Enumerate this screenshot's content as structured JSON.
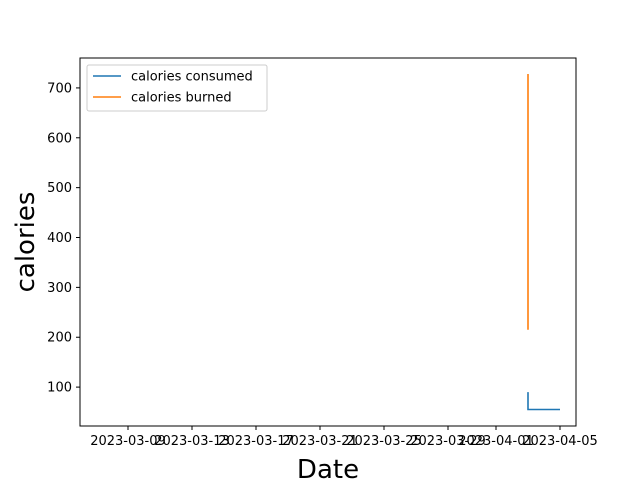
{
  "chart_data": {
    "type": "line",
    "title": "",
    "xlabel": "Date",
    "ylabel": "calories",
    "x_ticks": [
      "2023-03-09",
      "2023-03-13",
      "2023-03-17",
      "2023-03-21",
      "2023-03-25",
      "2023-03-29",
      "2023-04-01",
      "2023-04-05"
    ],
    "y_ticks": [
      100,
      200,
      300,
      400,
      500,
      600,
      700
    ],
    "xlim": [
      "2023-03-06",
      "2023-04-06"
    ],
    "ylim": [
      22,
      760
    ],
    "legend_position": "top-left",
    "series": [
      {
        "name": "calories consumed",
        "color": "#1f77b4",
        "points": [
          {
            "x": "2023-04-03",
            "y": 90
          },
          {
            "x": "2023-04-03",
            "y": 55
          },
          {
            "x": "2023-04-05",
            "y": 55
          }
        ]
      },
      {
        "name": "calories burned",
        "color": "#ff7f0e",
        "points": [
          {
            "x": "2023-04-03",
            "y": 728
          },
          {
            "x": "2023-04-03",
            "y": 215
          }
        ]
      }
    ]
  }
}
